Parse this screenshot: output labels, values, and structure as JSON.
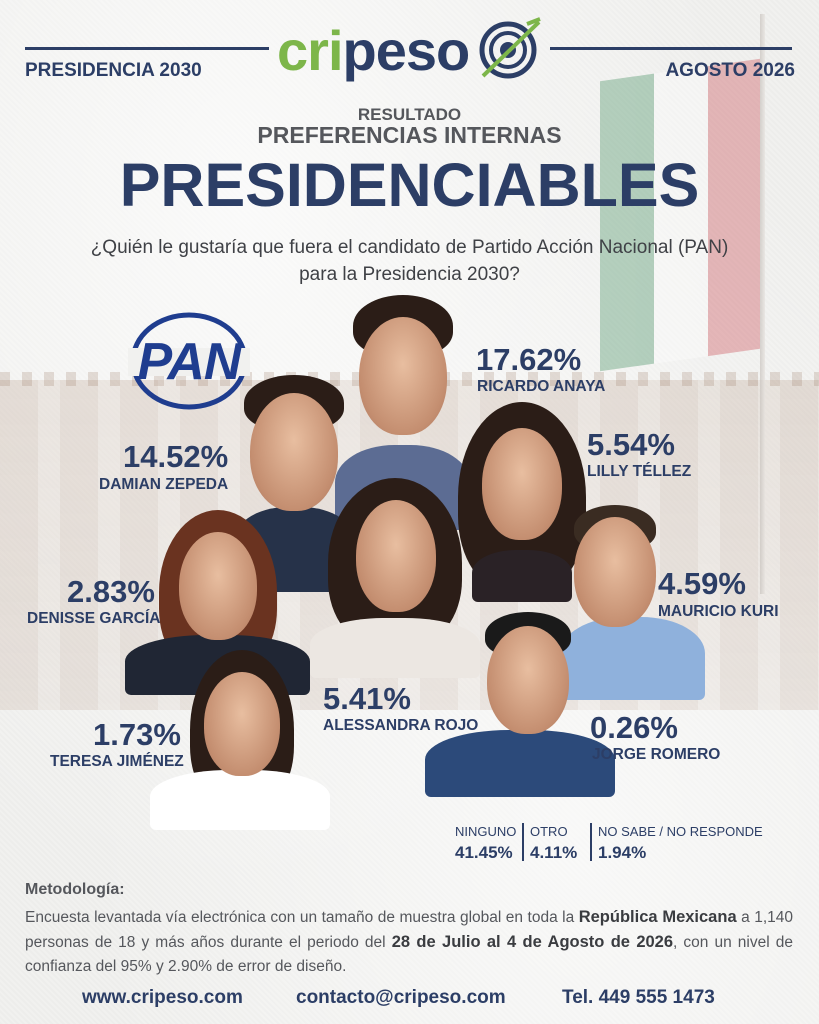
{
  "header": {
    "brand": {
      "part1": "cri",
      "part2": "peso"
    },
    "left_label": "PRESIDENCIA 2030",
    "right_label": "AGOSTO 2026"
  },
  "titles": {
    "kicker": "RESULTADO",
    "subtitle": "PREFERENCIAS INTERNAS",
    "title": "PRESIDENCIABLES",
    "question_line1": "¿Quién le gustaría que fuera el candidato de Partido Acción Nacional (PAN)",
    "question_line2": "para la Presidencia 2030?"
  },
  "party_logo": {
    "text": "PAN",
    "color": "#1f3d8f"
  },
  "candidates": [
    {
      "name": "RICARDO ANAYA",
      "pct": "17.62%"
    },
    {
      "name": "DAMIAN ZEPEDA",
      "pct": "14.52%"
    },
    {
      "name": "LILLY TÉLLEZ",
      "pct": "5.54%"
    },
    {
      "name": "DENISSE GARCÍA",
      "pct": "2.83%"
    },
    {
      "name": "MAURICIO KURI",
      "pct": "4.59%"
    },
    {
      "name": "ALESSANDRA ROJO",
      "pct": "5.41%"
    },
    {
      "name": "TERESA JIMÉNEZ",
      "pct": "1.73%"
    },
    {
      "name": "JORGE ROMERO",
      "pct": "0.26%"
    }
  ],
  "other_results": [
    {
      "label": "NINGUNO",
      "value": "41.45%"
    },
    {
      "label": "OTRO",
      "value": "4.11%"
    },
    {
      "label": "NO SABE / NO RESPONDE",
      "value": "1.94%"
    }
  ],
  "methodology": {
    "title": "Metodología:",
    "text_a": "Encuesta levantada vía electrónica con un tamaño de muestra global en toda la ",
    "bold_a": "República Mexicana",
    "text_b": " a 1,140 personas de 18 y más años durante el periodo del ",
    "bold_b": "28 de Julio al 4 de Agosto de 2026",
    "text_c": ", con un nivel de confianza del 95% y 2.90% de error de diseño."
  },
  "footer": {
    "website": "www.cripeso.com",
    "email": "contacto@cripeso.com",
    "phone": "Tel. 449 555 1473"
  },
  "colors": {
    "navy": "#2c3e66",
    "brand_green": "#7db64a",
    "gray_text": "#55575c"
  }
}
